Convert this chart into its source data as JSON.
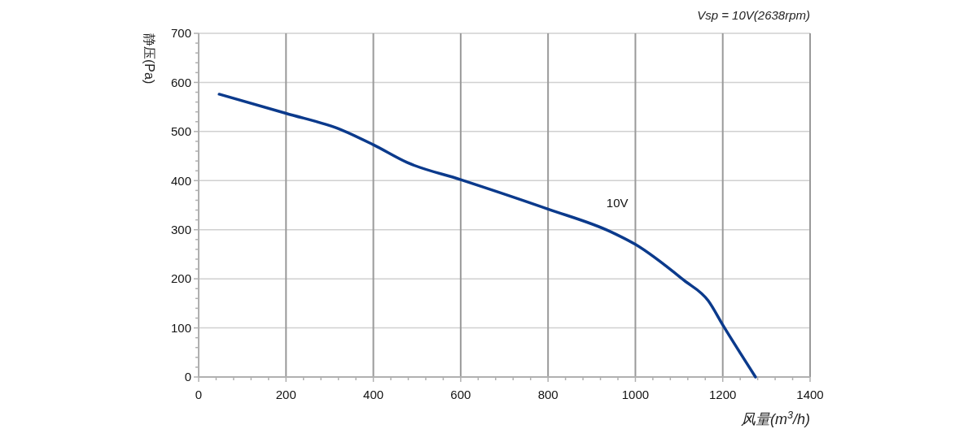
{
  "chart_data": {
    "type": "line",
    "title": "Vsp = 10V(2638rpm)",
    "xlabel": "风量(m$^{3}$/h)",
    "ylabel": "静压(Pa)",
    "xlim": [
      0,
      1400
    ],
    "ylim": [
      0,
      700
    ],
    "xticks": [
      0,
      {
        "value": 40,
        "label": null
      },
      {
        "value": 80,
        "label": null
      },
      {
        "value": 120,
        "label": null
      },
      {
        "value": 160,
        "label": null
      },
      200,
      {
        "value": 240,
        "label": null
      },
      {
        "value": 280,
        "label": null
      },
      {
        "value": 320,
        "label": null
      },
      {
        "value": 360,
        "label": null
      },
      400,
      {
        "value": 440,
        "label": null
      },
      {
        "value": 480,
        "label": null
      },
      {
        "value": 520,
        "label": null
      },
      {
        "value": 560,
        "label": null
      },
      600,
      {
        "value": 640,
        "label": null
      },
      {
        "value": 680,
        "label": null
      },
      {
        "value": 720,
        "label": null
      },
      {
        "value": 760,
        "label": null
      },
      800,
      {
        "value": 840,
        "label": null
      },
      {
        "value": 880,
        "label": null
      },
      {
        "value": 920,
        "label": null
      },
      {
        "value": 960,
        "label": null
      },
      1000,
      {
        "value": 1040,
        "label": null
      },
      {
        "value": 1080,
        "label": null
      },
      {
        "value": 1120,
        "label": null
      },
      {
        "value": 1160,
        "label": null
      },
      1200,
      {
        "value": 1240,
        "label": null
      },
      {
        "value": 1280,
        "label": null
      },
      {
        "value": 1320,
        "label": null
      },
      {
        "value": 1360,
        "label": null
      },
      1400
    ],
    "yticks": [
      0,
      {
        "value": 20,
        "label": null
      },
      {
        "value": 40,
        "label": null
      },
      {
        "value": 60,
        "label": null
      },
      {
        "value": 80,
        "label": null
      },
      100,
      {
        "value": 120,
        "label": null
      },
      {
        "value": 140,
        "label": null
      },
      {
        "value": 160,
        "label": null
      },
      {
        "value": 180,
        "label": null
      },
      200,
      {
        "value": 220,
        "label": null
      },
      {
        "value": 240,
        "label": null
      },
      {
        "value": 260,
        "label": null
      },
      {
        "value": 280,
        "label": null
      },
      300,
      {
        "value": 320,
        "label": null
      },
      {
        "value": 340,
        "label": null
      },
      {
        "value": 360,
        "label": null
      },
      {
        "value": 380,
        "label": null
      },
      400,
      {
        "value": 420,
        "label": null
      },
      {
        "value": 440,
        "label": null
      },
      {
        "value": 460,
        "label": null
      },
      {
        "value": 480,
        "label": null
      },
      500,
      {
        "value": 520,
        "label": null
      },
      {
        "value": 540,
        "label": null
      },
      {
        "value": 560,
        "label": null
      },
      {
        "value": 580,
        "label": null
      },
      600,
      {
        "value": 620,
        "label": null
      },
      {
        "value": 640,
        "label": null
      },
      {
        "value": 660,
        "label": null
      },
      {
        "value": 680,
        "label": null
      },
      700
    ],
    "grid": true,
    "legend": false,
    "marker": "none",
    "line_style": "solid",
    "series": [
      {
        "name": "10V",
        "color": "#0b3a8c",
        "x": [
          47,
          200,
          328,
          400,
          477,
          600,
          800,
          943,
          1000,
          1111,
          1167,
          1200,
          1275
        ],
        "values": [
          576,
          537,
          503,
          473,
          437,
          402,
          342,
          296,
          270,
          197,
          155,
          106,
          0
        ]
      }
    ]
  }
}
